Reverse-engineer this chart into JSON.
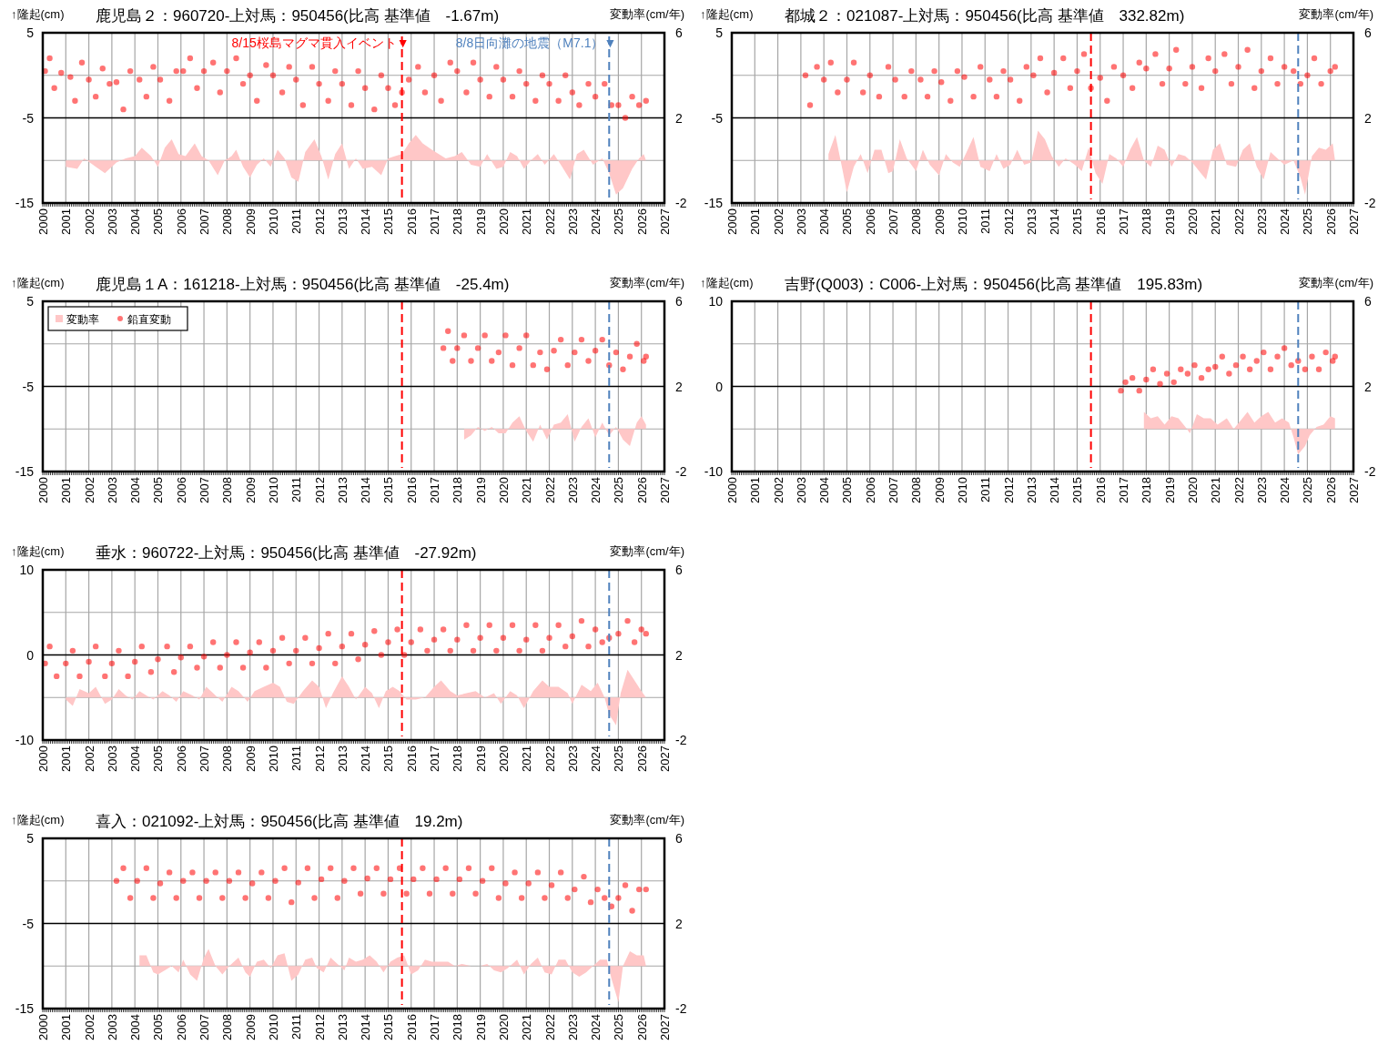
{
  "chart_data": [
    {
      "type": "scatter",
      "title": "鹿児島２：960720-上対馬：950456(比高 基準値　-1.67m)",
      "ylabel": "↑隆起(cm)",
      "y2label": "変動率(cm/年)",
      "xlim": [
        2000,
        2027
      ],
      "xticks": [
        2000,
        2001,
        2002,
        2003,
        2004,
        2005,
        2006,
        2007,
        2008,
        2009,
        2010,
        2011,
        2012,
        2013,
        2014,
        2015,
        2016,
        2017,
        2018,
        2019,
        2020,
        2021,
        2022,
        2023,
        2024,
        2025,
        2026,
        2027
      ],
      "ylim": [
        -15,
        5
      ],
      "yticks": [
        -15,
        {
          "value": -10,
          "label": null
        },
        -5,
        {
          "value": 0,
          "label": null
        },
        5
      ],
      "y2lim": [
        -2,
        6
      ],
      "y2ticks": [
        -2,
        2,
        6
      ],
      "grid": true,
      "series": [
        {
          "marker": "circle",
          "color": "#ff0000",
          "x": [
            2000.1,
            2000.3,
            2000.5,
            2000.8,
            2001.2,
            2001.4,
            2001.7,
            2002.0,
            2002.3,
            2002.6,
            2002.9,
            2003.2,
            2003.5,
            2003.8,
            2004.2,
            2004.5,
            2004.8,
            2005.1,
            2005.5,
            2005.8,
            2006.1,
            2006.4,
            2006.7,
            2007.0,
            2007.4,
            2007.7,
            2008.0,
            2008.4,
            2008.7,
            2009.0,
            2009.3,
            2009.7,
            2010.0,
            2010.4,
            2010.7,
            2011.0,
            2011.3,
            2011.7,
            2012.0,
            2012.4,
            2012.7,
            2013.0,
            2013.4,
            2013.7,
            2014.0,
            2014.4,
            2014.7,
            2015.0,
            2015.3,
            2015.6,
            2015.9,
            2016.3,
            2016.6,
            2017.0,
            2017.3,
            2017.7,
            2018.0,
            2018.4,
            2018.7,
            2019.0,
            2019.4,
            2019.7,
            2020.0,
            2020.4,
            2020.7,
            2021.0,
            2021.4,
            2021.7,
            2022.0,
            2022.4,
            2022.7,
            2023.0,
            2023.3,
            2023.7,
            2024.0,
            2024.4,
            2024.7,
            2025.0,
            2025.3,
            2025.6,
            2025.9,
            2026.2
          ],
          "values": [
            0.5,
            2,
            -1.5,
            0.3,
            -0.2,
            -3,
            1.5,
            -0.5,
            -2.5,
            0.8,
            -1,
            -0.8,
            -4,
            0.5,
            -0.5,
            -2.5,
            1,
            -0.5,
            -3,
            0.5,
            0.5,
            2,
            -1.5,
            0.5,
            1.5,
            -2,
            0.5,
            2,
            -1,
            0,
            -3,
            1.2,
            0,
            -2,
            1,
            -0.5,
            -3.5,
            1,
            -1,
            -3,
            0.5,
            -1,
            -3.5,
            0.5,
            -1.5,
            -4,
            0,
            -1.5,
            -3.5,
            -2,
            -0.5,
            1,
            -2,
            0,
            -3,
            1.5,
            0.5,
            -2,
            1.5,
            -0.5,
            -2.5,
            1,
            -0.5,
            -2.5,
            0.5,
            -1,
            -3,
            0,
            -1,
            -3,
            0,
            -2,
            -3.5,
            -1,
            -2.5,
            -1,
            -3.5,
            -3.5,
            -5,
            -2.5,
            -3.5,
            -3
          ]
        },
        {
          "type": "area",
          "axis": "y2",
          "color": "#ffc7c7",
          "x": [
            2001.0,
            2001.5,
            2001.8,
            2002.3,
            2002.7,
            2003.2,
            2003.6,
            2004.0,
            2004.3,
            2004.7,
            2005.0,
            2005.3,
            2005.6,
            2005.9,
            2006.2,
            2006.6,
            2006.9,
            2007.2,
            2007.6,
            2007.9,
            2008.2,
            2008.4,
            2008.7,
            2009.0,
            2009.3,
            2009.6,
            2009.9,
            2010.2,
            2010.5,
            2010.8,
            2011.1,
            2011.4,
            2011.8,
            2012.1,
            2012.4,
            2012.7,
            2013.0,
            2013.3,
            2013.6,
            2013.9,
            2014.3,
            2014.7,
            2015.0,
            2015.3,
            2015.6,
            2015.9,
            2016.2,
            2016.5,
            2016.9,
            2017.2,
            2017.5,
            2017.9,
            2018.2,
            2018.6,
            2019.0,
            2019.3,
            2019.7,
            2020.0,
            2020.3,
            2020.6,
            2020.9,
            2021.2,
            2021.5,
            2021.8,
            2022.2,
            2022.5,
            2022.9,
            2023.2,
            2023.5,
            2023.9,
            2024.3,
            2024.6,
            2024.9,
            2025.2,
            2025.6,
            2025.9,
            2026.1,
            2026.2
          ],
          "values": [
            -0.3,
            -0.4,
            0.1,
            -0.3,
            -0.6,
            -0.1,
            0.1,
            0.2,
            0.6,
            0.2,
            -0.3,
            0.6,
            1.0,
            0.3,
            0.2,
            0.8,
            0.2,
            0,
            -0.7,
            0,
            0.2,
            0.5,
            -0.3,
            -0.8,
            -0.2,
            0.1,
            -0.3,
            0.5,
            0.1,
            -0.8,
            -1.0,
            0.4,
            1.0,
            0.2,
            -0.9,
            0.3,
            0.8,
            -0.4,
            0.1,
            -0.4,
            -0.3,
            -0.7,
            0.1,
            0.2,
            0.3,
            0.8,
            1.2,
            0.8,
            0.5,
            0.3,
            0.1,
            0.2,
            0.4,
            -0.2,
            -0.3,
            0.3,
            -0.4,
            -0.3,
            0.4,
            0.2,
            -0.4,
            0,
            0.3,
            -0.2,
            0.3,
            -0.2,
            -0.9,
            0.3,
            0.5,
            -0.2,
            0.1,
            -0.6,
            -1.6,
            -1.3,
            -0.4,
            0.1,
            0.3,
            0
          ]
        }
      ],
      "ref_lines": [
        {
          "axis": "y",
          "value": -5,
          "color": "#000000"
        },
        {
          "axis": "x",
          "value": 2015.6,
          "label": "8/15桜島マグマ貫入イベント▼",
          "color": "#ff0000",
          "line_style": "dashed"
        },
        {
          "axis": "x",
          "value": 2024.6,
          "label": "8/8日向灘の地震（M7.1）▼",
          "color": "#4f81bd",
          "line_style": "dashed"
        }
      ]
    },
    {
      "type": "scatter",
      "title": "都城２：021087-上対馬：950456(比高 基準値　332.82m)",
      "ylabel": "↑隆起(cm)",
      "y2label": "変動率(cm/年)",
      "xlim": [
        2000,
        2027
      ],
      "xticks": [
        2000,
        2001,
        2002,
        2003,
        2004,
        2005,
        2006,
        2007,
        2008,
        2009,
        2010,
        2011,
        2012,
        2013,
        2014,
        2015,
        2016,
        2017,
        2018,
        2019,
        2020,
        2021,
        2022,
        2023,
        2024,
        2025,
        2026,
        2027
      ],
      "ylim": [
        -15,
        5
      ],
      "yticks": [
        -15,
        {
          "value": -10,
          "label": null
        },
        -5,
        {
          "value": 0,
          "label": null
        },
        5
      ],
      "y2lim": [
        -2,
        6
      ],
      "y2ticks": [
        -2,
        2,
        6
      ],
      "grid": true,
      "series": [
        {
          "marker": "circle",
          "color": "#ff0000",
          "x": [
            2003.2,
            2003.4,
            2003.7,
            2004.0,
            2004.3,
            2004.6,
            2005.0,
            2005.3,
            2005.7,
            2006.0,
            2006.4,
            2006.8,
            2007.1,
            2007.5,
            2007.8,
            2008.2,
            2008.5,
            2008.8,
            2009.1,
            2009.5,
            2009.8,
            2010.1,
            2010.5,
            2010.8,
            2011.2,
            2011.5,
            2011.8,
            2012.1,
            2012.5,
            2012.8,
            2013.1,
            2013.4,
            2013.7,
            2014.0,
            2014.4,
            2014.7,
            2015.0,
            2015.3,
            2015.6,
            2016.0,
            2016.3,
            2016.6,
            2017.0,
            2017.4,
            2017.7,
            2018.0,
            2018.4,
            2018.7,
            2019.0,
            2019.3,
            2019.7,
            2020.0,
            2020.4,
            2020.7,
            2021.0,
            2021.4,
            2021.7,
            2022.0,
            2022.4,
            2022.7,
            2023.0,
            2023.4,
            2023.7,
            2024.0,
            2024.4,
            2024.7,
            2025.0,
            2025.3,
            2025.6,
            2026.0,
            2026.2
          ],
          "values": [
            0,
            -3.5,
            1,
            -0.5,
            1.5,
            -2,
            -0.5,
            1.5,
            -2,
            0,
            -2.5,
            1,
            -0.5,
            -2.5,
            0.5,
            -0.5,
            -2.5,
            0.5,
            -0.8,
            -3,
            0.5,
            -0.2,
            -2.5,
            1,
            -0.5,
            -2.5,
            0.5,
            -0.5,
            -3,
            1,
            0,
            2,
            -2,
            0.3,
            2,
            -1.5,
            0.5,
            2.5,
            -1.5,
            -0.3,
            -3,
            1,
            0,
            -1.5,
            1.5,
            0.8,
            2.5,
            -1,
            0.8,
            3,
            -1,
            1,
            -1.5,
            2,
            0.5,
            2.5,
            -1,
            1,
            3,
            -1.5,
            0.5,
            2,
            -1,
            1,
            0.5,
            -1,
            0,
            2,
            -1,
            0.5,
            1
          ]
        },
        {
          "type": "area",
          "axis": "y2",
          "color": "#ffc7c7",
          "x": [
            2004.2,
            2004.5,
            2004.8,
            2005.0,
            2005.3,
            2005.6,
            2005.9,
            2006.2,
            2006.5,
            2006.8,
            2007.0,
            2007.3,
            2007.6,
            2008.0,
            2008.3,
            2008.6,
            2009.0,
            2009.3,
            2009.6,
            2009.9,
            2010.2,
            2010.5,
            2010.8,
            2011.2,
            2011.5,
            2011.8,
            2012.1,
            2012.4,
            2012.7,
            2013.0,
            2013.3,
            2013.6,
            2013.9,
            2014.2,
            2014.5,
            2014.9,
            2015.2,
            2015.5,
            2015.8,
            2016.1,
            2016.4,
            2016.7,
            2017.0,
            2017.3,
            2017.6,
            2017.9,
            2018.2,
            2018.5,
            2018.8,
            2019.1,
            2019.4,
            2019.7,
            2020.0,
            2020.3,
            2020.6,
            2020.9,
            2021.2,
            2021.5,
            2021.9,
            2022.2,
            2022.5,
            2022.8,
            2023.1,
            2023.4,
            2023.7,
            2024.0,
            2024.4,
            2024.7,
            2024.9,
            2025.2,
            2025.5,
            2025.8,
            2026.1,
            2026.2
          ],
          "values": [
            0.3,
            1.2,
            -0.4,
            -1.5,
            -0.3,
            0.3,
            -0.6,
            0.5,
            0.5,
            -0.6,
            -0.5,
            1.0,
            0.1,
            -0.5,
            0.5,
            -0.2,
            -0.7,
            0.3,
            -0.1,
            -0.3,
            0.4,
            1.1,
            -0.3,
            -0.5,
            0.3,
            -0.4,
            -0.2,
            0.5,
            -0.2,
            -0.1,
            1.4,
            1.0,
            0.2,
            -0.3,
            0.1,
            -0.2,
            -0.5,
            0.6,
            -0.6,
            -1.1,
            0.3,
            0.1,
            -0.3,
            0.5,
            1.1,
            0,
            -0.3,
            0.7,
            0.5,
            -0.3,
            0.3,
            0.2,
            -0.1,
            -0.5,
            -0.9,
            0.5,
            0.8,
            -0.2,
            -0.3,
            0.5,
            0.8,
            -0.3,
            -0.9,
            0.4,
            0.1,
            -0.2,
            0,
            -0.8,
            -1.6,
            0.2,
            0.6,
            0.5,
            0.8,
            0
          ]
        }
      ],
      "ref_lines": [
        {
          "axis": "y",
          "value": -5,
          "color": "#000000"
        },
        {
          "axis": "x",
          "value": 2015.6,
          "color": "#ff0000",
          "line_style": "dashed"
        },
        {
          "axis": "x",
          "value": 2024.6,
          "color": "#4f81bd",
          "line_style": "dashed"
        }
      ]
    },
    {
      "type": "scatter",
      "title": "鹿児島１A：161218-上対馬：950456(比高 基準値　-25.4m)",
      "ylabel": "↑隆起(cm)",
      "y2label": "変動率(cm/年)",
      "xlim": [
        2000,
        2027
      ],
      "xticks": [
        2000,
        2001,
        2002,
        2003,
        2004,
        2005,
        2006,
        2007,
        2008,
        2009,
        2010,
        2011,
        2012,
        2013,
        2014,
        2015,
        2016,
        2017,
        2018,
        2019,
        2020,
        2021,
        2022,
        2023,
        2024,
        2025,
        2026,
        2027
      ],
      "ylim": [
        -15,
        5
      ],
      "yticks": [
        -15,
        {
          "value": -10,
          "label": null
        },
        -5,
        {
          "value": 0,
          "label": null
        },
        5
      ],
      "y2lim": [
        -2,
        6
      ],
      "y2ticks": [
        -2,
        2,
        6
      ],
      "grid": true,
      "legend": "top left",
      "series": [
        {
          "marker": "circle",
          "name": "鉛直変動",
          "color": "#ff0000",
          "x": [
            2017.4,
            2017.6,
            2017.8,
            2018.0,
            2018.3,
            2018.6,
            2018.9,
            2019.2,
            2019.5,
            2019.8,
            2020.1,
            2020.4,
            2020.7,
            2021.0,
            2021.3,
            2021.6,
            2021.9,
            2022.2,
            2022.5,
            2022.8,
            2023.1,
            2023.4,
            2023.7,
            2024.0,
            2024.3,
            2024.6,
            2024.9,
            2025.2,
            2025.5,
            2025.8,
            2026.1,
            2026.2
          ],
          "values": [
            -0.5,
            1.5,
            -2,
            -0.5,
            1,
            -2,
            -0.5,
            1,
            -2,
            -1,
            1,
            -2.5,
            -0.5,
            1,
            -2.5,
            -1,
            -3,
            -0.8,
            0.5,
            -2.5,
            -1,
            0.5,
            -2,
            -0.8,
            0.5,
            -2.5,
            -1,
            -3,
            -1.5,
            0,
            -2,
            -1.5
          ]
        },
        {
          "name": "変動率",
          "type": "area",
          "axis": "y2",
          "color": "#ffc7c7",
          "x": [
            2018.3,
            2018.6,
            2018.9,
            2019.2,
            2019.5,
            2019.8,
            2020.1,
            2020.4,
            2020.7,
            2021.0,
            2021.3,
            2021.6,
            2021.9,
            2022.2,
            2022.5,
            2022.8,
            2023.1,
            2023.4,
            2023.7,
            2024.0,
            2024.3,
            2024.6,
            2024.9,
            2025.2,
            2025.5,
            2025.8,
            2026.0,
            2026.2
          ],
          "values": [
            -0.5,
            -0.3,
            0.1,
            -0.1,
            0.1,
            -0.2,
            -0.2,
            0.3,
            0.6,
            -0.1,
            -0.6,
            0.2,
            -0.5,
            0.2,
            0.3,
            0.7,
            -0.6,
            0.1,
            0.5,
            -0.4,
            0.3,
            -0.3,
            0.1,
            -0.5,
            -0.8,
            0.3,
            0.6,
            0.2
          ]
        }
      ],
      "ref_lines": [
        {
          "axis": "y",
          "value": -5,
          "color": "#000000"
        },
        {
          "axis": "x",
          "value": 2015.6,
          "color": "#ff0000",
          "line_style": "dashed"
        },
        {
          "axis": "x",
          "value": 2024.6,
          "color": "#4f81bd",
          "line_style": "dashed"
        }
      ]
    },
    {
      "type": "scatter",
      "title": "吉野(Q003)：C006-上対馬：950456(比高 基準値　195.83m)",
      "ylabel": "↑隆起(cm)",
      "y2label": "変動率(cm/年)",
      "xlim": [
        2000,
        2027
      ],
      "xticks": [
        2000,
        2001,
        2002,
        2003,
        2004,
        2005,
        2006,
        2007,
        2008,
        2009,
        2010,
        2011,
        2012,
        2013,
        2014,
        2015,
        2016,
        2017,
        2018,
        2019,
        2020,
        2021,
        2022,
        2023,
        2024,
        2025,
        2026,
        2027
      ],
      "ylim": [
        -10,
        10
      ],
      "yticks": [
        -10,
        {
          "value": -5,
          "label": null
        },
        0,
        {
          "value": 5,
          "label": null
        },
        10
      ],
      "y2lim": [
        -2,
        6
      ],
      "y2ticks": [
        -2,
        2,
        6
      ],
      "grid": true,
      "series": [
        {
          "marker": "circle",
          "color": "#ff0000",
          "x": [
            2016.9,
            2017.1,
            2017.4,
            2017.7,
            2018.0,
            2018.3,
            2018.6,
            2018.9,
            2019.2,
            2019.5,
            2019.8,
            2020.1,
            2020.4,
            2020.7,
            2021.0,
            2021.3,
            2021.6,
            2021.9,
            2022.2,
            2022.5,
            2022.8,
            2023.1,
            2023.4,
            2023.7,
            2024.0,
            2024.3,
            2024.6,
            2024.9,
            2025.2,
            2025.5,
            2025.8,
            2026.1,
            2026.2
          ],
          "values": [
            -0.5,
            0.5,
            1,
            -0.5,
            0.8,
            2,
            0.3,
            1.5,
            0.5,
            2,
            1.5,
            2.5,
            1,
            2,
            2.3,
            3.5,
            1.5,
            2.5,
            3.5,
            2,
            3,
            4,
            2,
            3.5,
            4.5,
            2.5,
            3,
            2,
            3.5,
            2,
            4,
            3,
            3.5
          ]
        },
        {
          "type": "area",
          "axis": "y2",
          "color": "#ffc7c7",
          "x": [
            2017.9,
            2018.2,
            2018.5,
            2018.8,
            2019.1,
            2019.4,
            2019.7,
            2019.9,
            2020.2,
            2020.5,
            2020.8,
            2021.1,
            2021.5,
            2021.8,
            2022.1,
            2022.4,
            2022.7,
            2023.0,
            2023.3,
            2023.6,
            2023.9,
            2024.2,
            2024.4,
            2024.6,
            2024.9,
            2025.1,
            2025.4,
            2025.7,
            2026.0,
            2026.2
          ],
          "values": [
            0.8,
            0.5,
            0.6,
            0.2,
            0.6,
            0.5,
            0.1,
            -0.2,
            0.7,
            0.5,
            0.5,
            0.2,
            0.5,
            0,
            0.4,
            0.8,
            0.3,
            0.6,
            0.8,
            0.3,
            0.5,
            0.3,
            -0.4,
            -1.2,
            -0.8,
            -0.3,
            0.1,
            0.2,
            0.6,
            0.5
          ]
        }
      ],
      "ref_lines": [
        {
          "axis": "y",
          "value": 0,
          "color": "#000000"
        },
        {
          "axis": "x",
          "value": 2015.6,
          "color": "#ff0000",
          "line_style": "dashed"
        },
        {
          "axis": "x",
          "value": 2024.6,
          "color": "#4f81bd",
          "line_style": "dashed"
        }
      ]
    },
    {
      "type": "scatter",
      "title": "垂水：960722-上対馬：950456(比高 基準値　-27.92m)",
      "ylabel": "↑隆起(cm)",
      "y2label": "変動率(cm/年)",
      "xlim": [
        2000,
        2027
      ],
      "xticks": [
        2000,
        2001,
        2002,
        2003,
        2004,
        2005,
        2006,
        2007,
        2008,
        2009,
        2010,
        2011,
        2012,
        2013,
        2014,
        2015,
        2016,
        2017,
        2018,
        2019,
        2020,
        2021,
        2022,
        2023,
        2024,
        2025,
        2026,
        2027
      ],
      "ylim": [
        -10,
        10
      ],
      "yticks": [
        -10,
        {
          "value": -5,
          "label": null
        },
        0,
        {
          "value": 5,
          "label": null
        },
        10
      ],
      "y2lim": [
        -2,
        6
      ],
      "y2ticks": [
        -2,
        2,
        6
      ],
      "grid": true,
      "series": [
        {
          "marker": "circle",
          "color": "#ff0000",
          "x": [
            2000.1,
            2000.3,
            2000.6,
            2001.0,
            2001.3,
            2001.6,
            2002.0,
            2002.3,
            2002.7,
            2003.0,
            2003.3,
            2003.7,
            2004.0,
            2004.3,
            2004.7,
            2005.0,
            2005.4,
            2005.7,
            2006.0,
            2006.4,
            2006.7,
            2007.0,
            2007.4,
            2007.7,
            2008.0,
            2008.4,
            2008.7,
            2009.0,
            2009.4,
            2009.7,
            2010.0,
            2010.4,
            2010.7,
            2011.0,
            2011.4,
            2011.7,
            2012.0,
            2012.4,
            2012.7,
            2013.0,
            2013.4,
            2013.7,
            2014.0,
            2014.4,
            2014.7,
            2015.0,
            2015.4,
            2015.7,
            2016.0,
            2016.4,
            2016.7,
            2017.0,
            2017.4,
            2017.7,
            2018.0,
            2018.4,
            2018.7,
            2019.0,
            2019.4,
            2019.7,
            2020.0,
            2020.4,
            2020.7,
            2021.0,
            2021.4,
            2021.7,
            2022.0,
            2022.4,
            2022.7,
            2023.0,
            2023.4,
            2023.7,
            2024.0,
            2024.3,
            2024.6,
            2025.0,
            2025.4,
            2025.7,
            2026.0,
            2026.2
          ],
          "values": [
            -1,
            1,
            -2.5,
            -1,
            0.5,
            -2.5,
            -0.8,
            1,
            -2.5,
            -1,
            0.5,
            -2.5,
            -0.8,
            1,
            -2,
            -0.5,
            1,
            -2,
            -0.3,
            1,
            -1.5,
            -0.2,
            1.5,
            -1.5,
            0,
            1.5,
            -1.5,
            0.3,
            1.5,
            -1.5,
            0.5,
            2,
            -1,
            0.5,
            2,
            -1,
            0.8,
            2.5,
            -1,
            1,
            2.5,
            -0.5,
            1.2,
            2.8,
            0,
            1.5,
            3,
            0,
            1.5,
            3,
            0.5,
            1.8,
            3,
            0.5,
            1.8,
            3.5,
            0.5,
            2,
            3.5,
            0.5,
            2,
            3.5,
            0.5,
            1.8,
            3.5,
            0.5,
            2,
            3.5,
            1,
            2.2,
            4,
            1,
            3,
            1.5,
            2,
            2.5,
            4,
            1.5,
            3,
            2.5
          ]
        },
        {
          "type": "area",
          "axis": "y2",
          "color": "#ffc7c7",
          "x": [
            2001.0,
            2001.3,
            2001.6,
            2002.0,
            2002.3,
            2002.7,
            2003.0,
            2003.3,
            2003.6,
            2003.9,
            2004.2,
            2004.5,
            2004.8,
            2005.2,
            2005.5,
            2005.8,
            2006.1,
            2006.5,
            2006.8,
            2007.1,
            2007.4,
            2007.8,
            2008.2,
            2008.5,
            2008.9,
            2009.2,
            2009.6,
            2010.0,
            2010.3,
            2010.6,
            2010.9,
            2011.3,
            2011.7,
            2012.0,
            2012.3,
            2012.6,
            2013.0,
            2013.3,
            2013.6,
            2014.0,
            2014.3,
            2014.6,
            2014.9,
            2015.2,
            2015.5,
            2015.8,
            2016.2,
            2016.6,
            2017.0,
            2017.3,
            2017.7,
            2018.0,
            2018.4,
            2018.8,
            2019.2,
            2019.6,
            2019.9,
            2020.3,
            2020.6,
            2020.9,
            2021.3,
            2021.7,
            2022.0,
            2022.4,
            2022.8,
            2023.0,
            2023.4,
            2023.8,
            2024.1,
            2024.4,
            2024.6,
            2024.9,
            2025.1,
            2025.4,
            2025.7,
            2026.0,
            2026.2
          ],
          "values": [
            -0.1,
            -0.4,
            0.4,
            0.2,
            0.5,
            -0.3,
            -0.1,
            0.4,
            0.1,
            -0.1,
            0.3,
            0.1,
            -0.1,
            0.3,
            0.1,
            -0.2,
            0.3,
            0.1,
            -0.1,
            0.5,
            0.2,
            -0.2,
            0.5,
            0.3,
            -0.2,
            0.3,
            0.5,
            0.7,
            0.5,
            -0.2,
            -0.3,
            0.3,
            0.8,
            0.5,
            -0.5,
            0.2,
            1.0,
            0.5,
            -0.1,
            0.5,
            0.2,
            -0.5,
            0.3,
            0.5,
            0.3,
            -0.1,
            -0.1,
            0,
            0.5,
            0.8,
            0.3,
            0.1,
            0.2,
            0.3,
            0,
            0.2,
            -0.3,
            0.3,
            0.1,
            -0.5,
            0.3,
            0.8,
            0.5,
            0.5,
            0.2,
            -0.3,
            0.6,
            0.3,
            0.7,
            0,
            -0.8,
            -1.3,
            0.2,
            1.3,
            0.8,
            0.3,
            0
          ]
        }
      ],
      "ref_lines": [
        {
          "axis": "y",
          "value": 0,
          "color": "#000000"
        },
        {
          "axis": "x",
          "value": 2015.6,
          "color": "#ff0000",
          "line_style": "dashed"
        },
        {
          "axis": "x",
          "value": 2024.6,
          "color": "#4f81bd",
          "line_style": "dashed"
        }
      ]
    },
    {
      "type": "scatter",
      "title": "喜入：021092-上対馬：950456(比高 基準値　19.2m)",
      "ylabel": "↑隆起(cm)",
      "y2label": "変動率(cm/年)",
      "xlim": [
        2000,
        2027
      ],
      "xticks": [
        2000,
        2001,
        2002,
        2003,
        2004,
        2005,
        2006,
        2007,
        2008,
        2009,
        2010,
        2011,
        2012,
        2013,
        2014,
        2015,
        2016,
        2017,
        2018,
        2019,
        2020,
        2021,
        2022,
        2023,
        2024,
        2025,
        2026,
        2027
      ],
      "ylim": [
        -15,
        5
      ],
      "yticks": [
        -15,
        {
          "value": -10,
          "label": null
        },
        -5,
        {
          "value": 0,
          "label": null
        },
        5
      ],
      "y2lim": [
        -2,
        6
      ],
      "y2ticks": [
        -2,
        2,
        6
      ],
      "grid": true,
      "series": [
        {
          "marker": "circle",
          "color": "#ff0000",
          "x": [
            2003.2,
            2003.5,
            2003.8,
            2004.1,
            2004.5,
            2004.8,
            2005.1,
            2005.5,
            2005.8,
            2006.1,
            2006.5,
            2006.8,
            2007.1,
            2007.5,
            2007.8,
            2008.1,
            2008.5,
            2008.8,
            2009.1,
            2009.5,
            2009.8,
            2010.1,
            2010.5,
            2010.8,
            2011.1,
            2011.5,
            2011.8,
            2012.1,
            2012.5,
            2012.8,
            2013.1,
            2013.5,
            2013.8,
            2014.1,
            2014.5,
            2014.8,
            2015.1,
            2015.5,
            2015.8,
            2016.1,
            2016.5,
            2016.8,
            2017.1,
            2017.5,
            2017.8,
            2018.1,
            2018.5,
            2018.8,
            2019.1,
            2019.5,
            2019.8,
            2020.1,
            2020.5,
            2020.8,
            2021.1,
            2021.5,
            2021.8,
            2022.1,
            2022.5,
            2022.8,
            2023.1,
            2023.5,
            2023.8,
            2024.1,
            2024.4,
            2024.7,
            2025.0,
            2025.3,
            2025.6,
            2025.9,
            2026.2
          ],
          "values": [
            0,
            1.5,
            -2,
            0,
            1.5,
            -2,
            -0.3,
            1,
            -2,
            0,
            1,
            -2,
            0,
            1,
            -2,
            0,
            1,
            -2,
            -0.3,
            1,
            -2,
            0,
            1.5,
            -2.5,
            -0.2,
            1.5,
            -2,
            0.2,
            1.5,
            -2,
            0,
            1.5,
            -1.5,
            0.3,
            1.5,
            -1.5,
            0.2,
            1.5,
            -1.5,
            0.2,
            1.5,
            -1.5,
            0.2,
            1.5,
            -1.5,
            0.2,
            1.5,
            -1.5,
            0,
            1.5,
            -2,
            -0.3,
            1,
            -2,
            -0.3,
            1,
            -2,
            -0.5,
            1,
            -2,
            -1,
            0.5,
            -2.5,
            -1,
            -2,
            -3,
            -2,
            -0.5,
            -3.5,
            -1,
            -1
          ]
        },
        {
          "type": "area",
          "axis": "y2",
          "color": "#ffc7c7",
          "x": [
            2004.2,
            2004.5,
            2004.8,
            2005.0,
            2005.3,
            2005.6,
            2005.9,
            2006.1,
            2006.4,
            2006.7,
            2007.0,
            2007.2,
            2007.5,
            2007.8,
            2008.1,
            2008.5,
            2008.8,
            2009.0,
            2009.3,
            2009.6,
            2009.9,
            2010.2,
            2010.5,
            2010.8,
            2011.1,
            2011.4,
            2011.7,
            2011.9,
            2012.2,
            2012.5,
            2012.8,
            2013.1,
            2013.3,
            2013.6,
            2013.9,
            2014.2,
            2014.5,
            2014.8,
            2015.1,
            2015.4,
            2015.7,
            2016.0,
            2016.3,
            2016.6,
            2016.9,
            2017.2,
            2017.6,
            2017.9,
            2018.2,
            2018.6,
            2019.0,
            2019.3,
            2019.6,
            2019.9,
            2020.2,
            2020.6,
            2020.9,
            2021.2,
            2021.5,
            2021.8,
            2022.1,
            2022.4,
            2022.7,
            2023.0,
            2023.3,
            2023.6,
            2023.9,
            2024.2,
            2024.5,
            2024.7,
            2025.0,
            2025.2,
            2025.5,
            2025.8,
            2026.1,
            2026.2
          ],
          "values": [
            0.5,
            0.5,
            -0.3,
            -0.4,
            -0.2,
            0,
            -0.3,
            0.3,
            -0.4,
            -0.7,
            0.4,
            0.8,
            0,
            -0.4,
            0,
            0.4,
            -0.3,
            -0.5,
            0.2,
            0.3,
            -0.1,
            0.5,
            0.6,
            -0.7,
            -0.4,
            0.3,
            0.4,
            -0.1,
            -0.3,
            0.4,
            0.1,
            -0.2,
            0.4,
            0.2,
            0.3,
            0.5,
            0.2,
            -0.3,
            0.2,
            0.4,
            0.5,
            -0.4,
            -0.2,
            0.3,
            0.2,
            0.2,
            0.2,
            0,
            0.1,
            0,
            0,
            0.1,
            -0.2,
            -0.3,
            -0.1,
            0.3,
            -0.4,
            0.1,
            0.4,
            -0.3,
            -0.4,
            0.3,
            0.3,
            -0.3,
            -0.5,
            -0.3,
            0,
            0.3,
            0.3,
            -0.6,
            -1.7,
            0,
            0.7,
            0.5,
            0.5,
            0
          ]
        }
      ],
      "ref_lines": [
        {
          "axis": "y",
          "value": -5,
          "color": "#000000"
        },
        {
          "axis": "x",
          "value": 2015.6,
          "color": "#ff0000",
          "line_style": "dashed"
        },
        {
          "axis": "x",
          "value": 2024.6,
          "color": "#4f81bd",
          "line_style": "dashed"
        }
      ]
    }
  ]
}
